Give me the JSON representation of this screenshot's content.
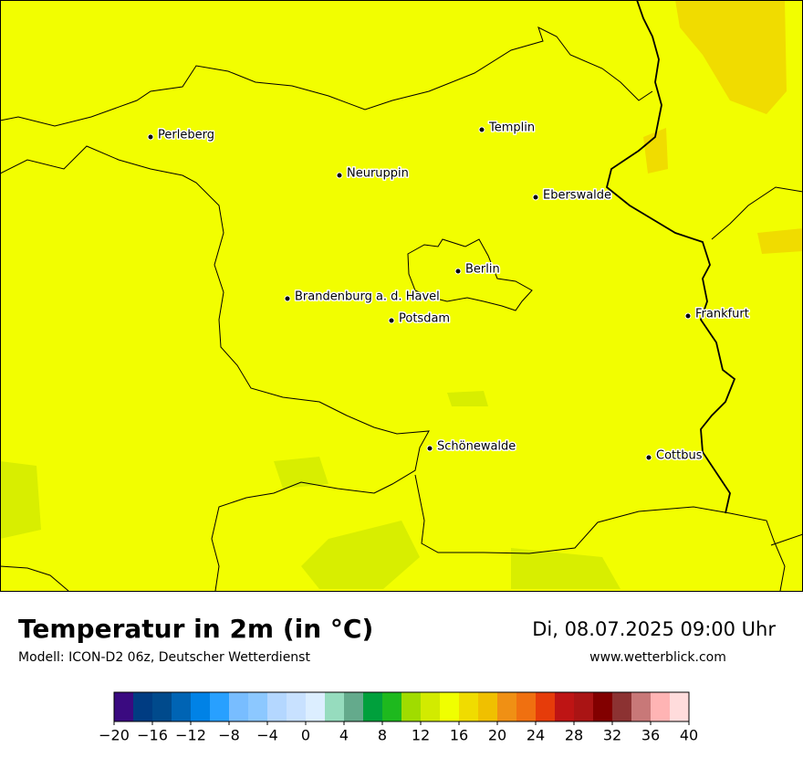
{
  "map": {
    "cities": [
      {
        "name": "Perleberg"
      },
      {
        "name": "Neuruppin"
      },
      {
        "name": "Templin"
      },
      {
        "name": "Eberswalde"
      },
      {
        "name": "Berlin"
      },
      {
        "name": "Brandenburg a. d. Havel"
      },
      {
        "name": "Potsdam"
      },
      {
        "name": "Frankfurt"
      },
      {
        "name": "Schönewalde"
      },
      {
        "name": "Cottbus"
      }
    ]
  },
  "legend": {
    "title": "Temperatur in 2m (in °C)",
    "subtitle": "Modell: ICON-D2 06z, Deutscher Wetterdienst",
    "datetime": "Di, 08.07.2025 09:00 Uhr",
    "website": "www.wetterblick.com",
    "colorbar": {
      "lim": [
        -20,
        40
      ],
      "ticks": [
        {
          "value": -20,
          "label": "−20"
        },
        {
          "value": -16,
          "label": "−16"
        },
        {
          "value": -12,
          "label": "−12"
        },
        {
          "value": -8,
          "label": "−8"
        },
        {
          "value": -4,
          "label": "−4"
        },
        0,
        4,
        8,
        12,
        16,
        20,
        24,
        28,
        32,
        36,
        40
      ],
      "colors": [
        "#3a0a80",
        "#003c82",
        "#004a8c",
        "#0064b4",
        "#0082e6",
        "#28a0ff",
        "#78bdff",
        "#8cc8ff",
        "#b4d7ff",
        "#c8e1ff",
        "#dceeff",
        "#96dcbe",
        "#64aa8c",
        "#00a03c",
        "#1eb91e",
        "#a0dc00",
        "#d2eb00",
        "#f0ff00",
        "#f0dc00",
        "#f0c000",
        "#f09014",
        "#f07010",
        "#e63c0a",
        "#be1414",
        "#aa1414",
        "#820000",
        "#8c3232",
        "#c87878",
        "#ffb4b4",
        "#ffdcdc"
      ]
    }
  }
}
